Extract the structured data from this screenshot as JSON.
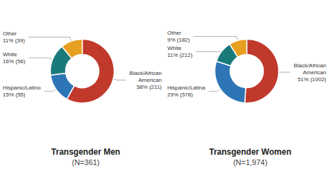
{
  "chart_data": [
    {
      "type": "pie",
      "title": "Transgender Men",
      "subtitle": "(N=361)",
      "categories": [
        "Black/African\nAmerican",
        "Hispanic/Latino",
        "White",
        "Other"
      ],
      "values": [
        58,
        15,
        16,
        11
      ],
      "value_labels": [
        "58% (211)",
        "15% (55)",
        "16% (56)",
        "11% (39)"
      ],
      "colors": [
        "#c0392b",
        "#2e75b6",
        "#1a7a7a",
        "#e8a020"
      ],
      "data_labels": true
    },
    {
      "type": "pie",
      "title": "Transgender Women",
      "subtitle": "(N=1,974)",
      "categories": [
        "Black/African\nAmerican",
        "Hispanic/Latina",
        "White",
        "Other"
      ],
      "values": [
        51,
        29,
        11,
        9
      ],
      "value_labels": [
        "51% (1002)",
        "29% (578)",
        "11% (212)",
        "9% (182)"
      ],
      "colors": [
        "#c0392b",
        "#2e75b6",
        "#1a7a7a",
        "#e8a020"
      ],
      "data_labels": true
    }
  ]
}
